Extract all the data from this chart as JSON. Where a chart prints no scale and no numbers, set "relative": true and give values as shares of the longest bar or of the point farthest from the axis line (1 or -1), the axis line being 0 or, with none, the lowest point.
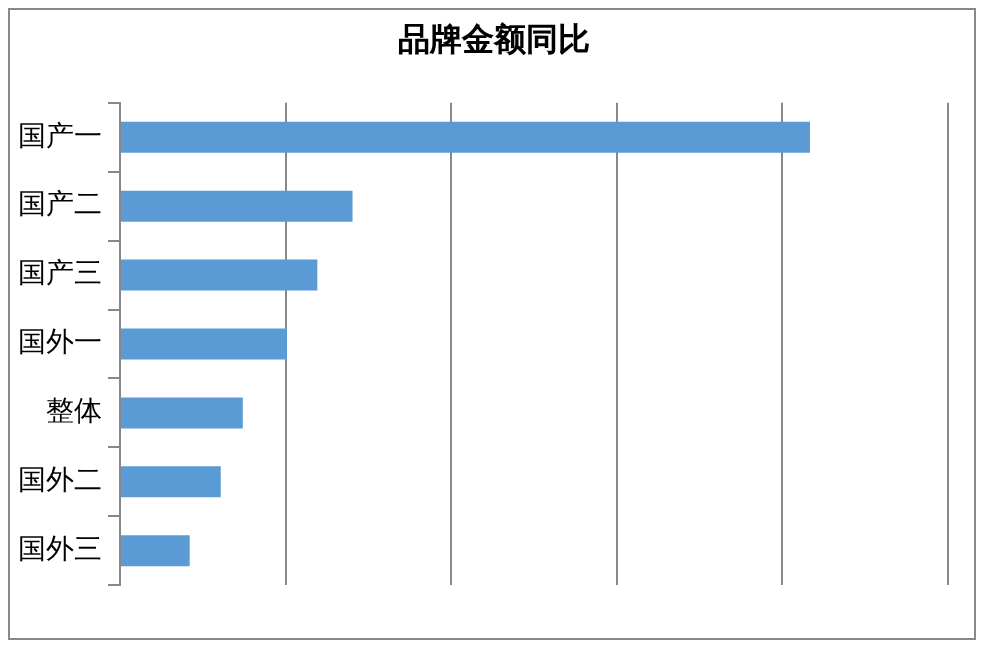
{
  "chart_data": {
    "type": "bar",
    "orientation": "horizontal",
    "title": "品牌金额同比",
    "relative": true,
    "grid": "x",
    "categories": [
      "国产一",
      "国产二",
      "国产三",
      "国外一",
      "整体",
      "国外二",
      "国外三"
    ],
    "values": [
      1,
      0.337,
      0.286,
      0.242,
      0.178,
      0.146,
      0.101
    ],
    "color": "#5b9bd5"
  }
}
